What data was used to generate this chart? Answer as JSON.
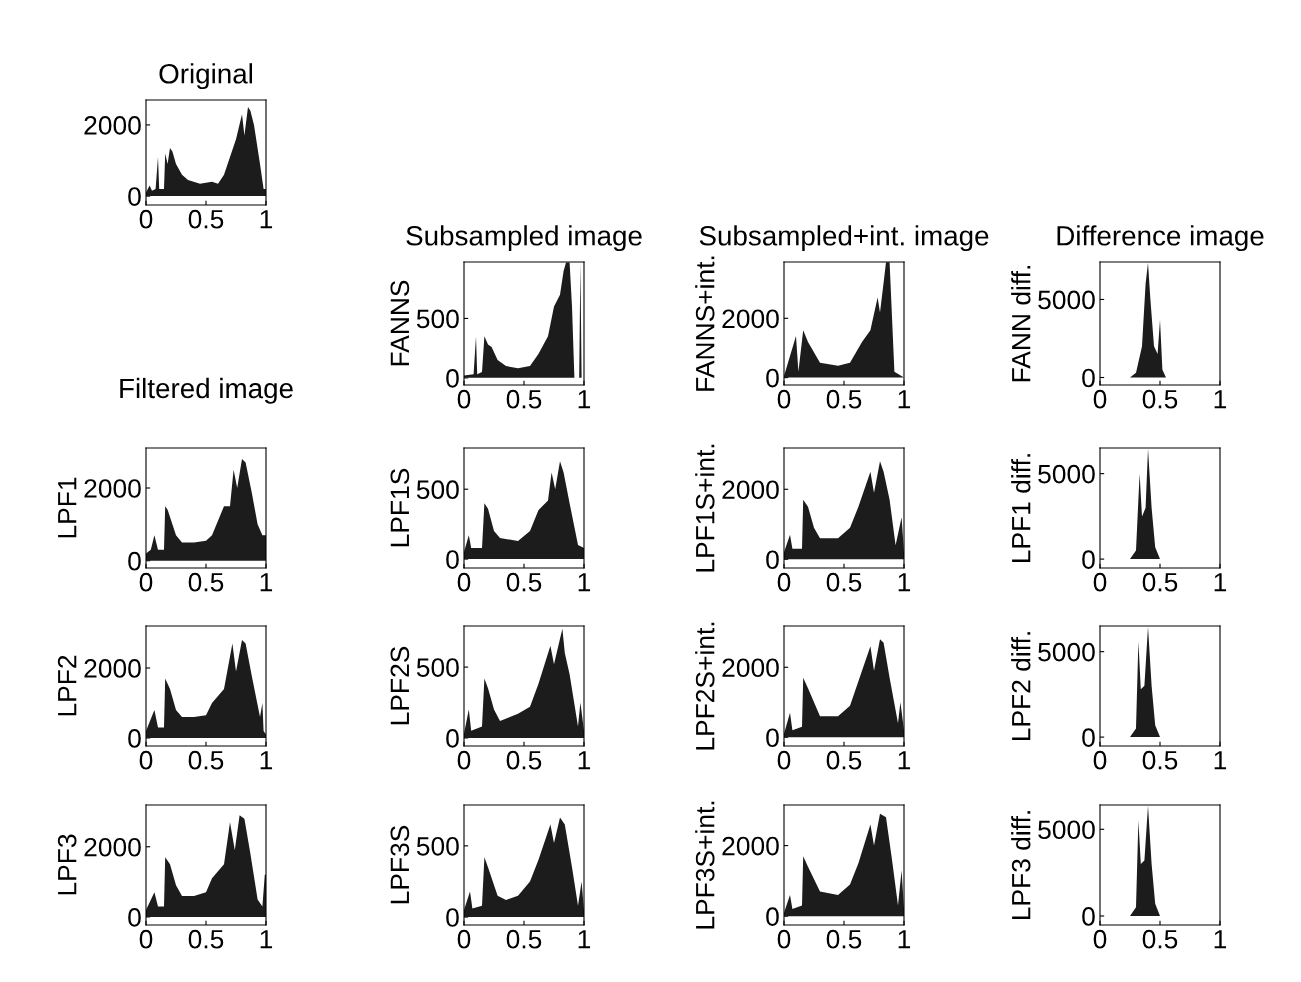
{
  "chart_data": [
    {
      "type": "area",
      "title": "Original",
      "color": "#1c1c1c",
      "xlim": [
        0,
        1
      ],
      "ylim": [
        -250,
        2700
      ],
      "xticks": [
        0,
        0.5,
        1
      ],
      "yticks": [
        0,
        2000
      ],
      "x": [
        0,
        0.03,
        0.05,
        0.08,
        0.1,
        0.11,
        0.15,
        0.16,
        0.18,
        0.2,
        0.22,
        0.25,
        0.3,
        0.35,
        0.45,
        0.55,
        0.6,
        0.65,
        0.7,
        0.75,
        0.8,
        0.82,
        0.85,
        0.87,
        0.9,
        0.95,
        0.98,
        1
      ],
      "values": [
        100,
        300,
        150,
        200,
        1100,
        200,
        200,
        1200,
        900,
        1350,
        1250,
        900,
        600,
        450,
        350,
        400,
        350,
        600,
        1100,
        1600,
        2300,
        1700,
        2500,
        2400,
        2000,
        900,
        200,
        200
      ]
    },
    {
      "type": "area",
      "title": "Subsampled image",
      "ylabel": "FANNS",
      "color": "#1c1c1c",
      "xlim": [
        0,
        1
      ],
      "ylim": [
        -60,
        975
      ],
      "xticks": [
        0,
        0.5,
        1
      ],
      "yticks": [
        0,
        500
      ],
      "x": [
        0,
        0.08,
        0.1,
        0.11,
        0.15,
        0.17,
        0.2,
        0.23,
        0.28,
        0.35,
        0.45,
        0.55,
        0.62,
        0.7,
        0.75,
        0.8,
        0.83,
        0.85,
        0.88,
        0.9,
        0.92,
        0.96,
        0.97,
        0.98,
        1
      ],
      "values": [
        20,
        30,
        350,
        30,
        50,
        350,
        280,
        260,
        150,
        100,
        80,
        100,
        200,
        350,
        600,
        700,
        900,
        970,
        970,
        600,
        0,
        0,
        970,
        0,
        0
      ]
    },
    {
      "type": "area",
      "title": "Subsampled+int. image",
      "ylabel": "FANNS+int.",
      "color": "#1c1c1c",
      "xlim": [
        0,
        1
      ],
      "ylim": [
        -250,
        3900
      ],
      "xticks": [
        0,
        0.5,
        1
      ],
      "yticks": [
        0,
        2000
      ],
      "x": [
        0,
        0.1,
        0.12,
        0.16,
        0.2,
        0.3,
        0.45,
        0.55,
        0.65,
        0.72,
        0.78,
        0.8,
        0.83,
        0.85,
        0.88,
        0.92,
        1
      ],
      "values": [
        50,
        1400,
        200,
        1600,
        1200,
        500,
        400,
        500,
        1200,
        1600,
        2700,
        2200,
        3200,
        3890,
        3890,
        200,
        0
      ]
    },
    {
      "type": "area",
      "title": "Difference image",
      "ylabel": "FANN diff.",
      "color": "#1c1c1c",
      "xlim": [
        0,
        1
      ],
      "ylim": [
        -480,
        7400
      ],
      "xticks": [
        0,
        0.5,
        1
      ],
      "yticks": [
        0,
        5000
      ],
      "x": [
        0,
        0.25,
        0.3,
        0.35,
        0.38,
        0.4,
        0.42,
        0.45,
        0.48,
        0.5,
        0.52,
        0.55,
        1
      ],
      "values": [
        0,
        0,
        300,
        2000,
        6000,
        7350,
        5000,
        2000,
        1500,
        3700,
        500,
        0,
        0
      ]
    },
    {
      "type": "area",
      "title": "Filtered image",
      "ylabel": "LPF1",
      "color": "#1c1c1c",
      "xlim": [
        0,
        1
      ],
      "ylim": [
        -200,
        3100
      ],
      "xticks": [
        0,
        0.5,
        1
      ],
      "yticks": [
        0,
        2000
      ],
      "x": [
        0,
        0.04,
        0.07,
        0.1,
        0.15,
        0.16,
        0.18,
        0.2,
        0.25,
        0.3,
        0.4,
        0.5,
        0.55,
        0.6,
        0.65,
        0.7,
        0.73,
        0.76,
        0.8,
        0.83,
        0.88,
        0.93,
        0.97,
        1
      ],
      "values": [
        200,
        300,
        700,
        300,
        300,
        1500,
        1400,
        1200,
        700,
        500,
        500,
        550,
        700,
        1100,
        1500,
        1500,
        2500,
        2000,
        2800,
        2700,
        1900,
        1000,
        700,
        700
      ]
    },
    {
      "type": "area",
      "ylabel": "LPF1S",
      "color": "#1c1c1c",
      "xlim": [
        0,
        1
      ],
      "ylim": [
        -64,
        795
      ],
      "xticks": [
        0,
        0.5,
        1
      ],
      "yticks": [
        0,
        500
      ],
      "x": [
        0,
        0.04,
        0.06,
        0.15,
        0.17,
        0.2,
        0.25,
        0.3,
        0.45,
        0.55,
        0.62,
        0.7,
        0.73,
        0.76,
        0.8,
        0.83,
        0.88,
        0.95,
        1
      ],
      "values": [
        50,
        170,
        80,
        80,
        400,
        360,
        200,
        150,
        130,
        200,
        350,
        420,
        620,
        500,
        700,
        620,
        400,
        100,
        80
      ]
    },
    {
      "type": "area",
      "ylabel": "LPF1S+int.",
      "color": "#1c1c1c",
      "xlim": [
        0,
        1
      ],
      "ylim": [
        -250,
        3180
      ],
      "xticks": [
        0,
        0.5,
        1
      ],
      "yticks": [
        0,
        2000
      ],
      "x": [
        0,
        0.05,
        0.07,
        0.15,
        0.16,
        0.2,
        0.25,
        0.3,
        0.45,
        0.55,
        0.62,
        0.72,
        0.75,
        0.8,
        0.83,
        0.88,
        0.93,
        0.98,
        1
      ],
      "values": [
        200,
        700,
        300,
        300,
        1700,
        1500,
        900,
        600,
        600,
        900,
        1500,
        2500,
        1900,
        2800,
        2500,
        1700,
        400,
        1200,
        200
      ]
    },
    {
      "type": "area",
      "ylabel": "LPF1 diff.",
      "color": "#1c1c1c",
      "xlim": [
        0,
        1
      ],
      "ylim": [
        -520,
        6500
      ],
      "xticks": [
        0,
        0.5,
        1
      ],
      "yticks": [
        0,
        5000
      ],
      "x": [
        0,
        0.25,
        0.3,
        0.33,
        0.35,
        0.38,
        0.4,
        0.43,
        0.46,
        0.5,
        1
      ],
      "values": [
        0,
        0,
        500,
        5000,
        2500,
        3000,
        6450,
        3000,
        700,
        0,
        0
      ]
    },
    {
      "type": "area",
      "ylabel": "LPF2",
      "color": "#1c1c1c",
      "xlim": [
        0,
        1
      ],
      "ylim": [
        -230,
        3200
      ],
      "xticks": [
        0,
        0.5,
        1
      ],
      "yticks": [
        0,
        2000
      ],
      "x": [
        0,
        0.07,
        0.1,
        0.15,
        0.16,
        0.2,
        0.25,
        0.3,
        0.4,
        0.5,
        0.55,
        0.65,
        0.72,
        0.75,
        0.8,
        0.83,
        0.88,
        0.95,
        0.97,
        0.98,
        1
      ],
      "values": [
        200,
        800,
        300,
        300,
        1700,
        1400,
        800,
        600,
        600,
        650,
        1000,
        1400,
        2700,
        1900,
        2800,
        2700,
        1800,
        600,
        1000,
        200,
        100
      ]
    },
    {
      "type": "area",
      "ylabel": "LPF2S",
      "color": "#1c1c1c",
      "xlim": [
        0,
        1
      ],
      "ylim": [
        -57,
        790
      ],
      "xticks": [
        0,
        0.5,
        1
      ],
      "yticks": [
        0,
        500
      ],
      "x": [
        0,
        0.04,
        0.06,
        0.15,
        0.17,
        0.2,
        0.25,
        0.3,
        0.45,
        0.55,
        0.62,
        0.72,
        0.75,
        0.8,
        0.82,
        0.84,
        0.88,
        0.95,
        0.97,
        1
      ],
      "values": [
        30,
        200,
        50,
        80,
        420,
        350,
        200,
        120,
        170,
        220,
        380,
        650,
        520,
        700,
        770,
        600,
        450,
        80,
        250,
        50
      ]
    },
    {
      "type": "area",
      "ylabel": "LPF2S+int.",
      "color": "#1c1c1c",
      "xlim": [
        0,
        1
      ],
      "ylim": [
        -250,
        3180
      ],
      "xticks": [
        0,
        0.5,
        1
      ],
      "yticks": [
        0,
        2000
      ],
      "x": [
        0,
        0.05,
        0.07,
        0.15,
        0.16,
        0.2,
        0.3,
        0.45,
        0.55,
        0.62,
        0.72,
        0.75,
        0.8,
        0.83,
        0.88,
        0.95,
        0.97,
        1
      ],
      "values": [
        100,
        700,
        200,
        300,
        1700,
        1400,
        600,
        600,
        900,
        1600,
        2600,
        1900,
        2800,
        2700,
        1700,
        400,
        1000,
        200
      ]
    },
    {
      "type": "area",
      "ylabel": "LPF2 diff.",
      "color": "#1c1c1c",
      "xlim": [
        0,
        1
      ],
      "ylim": [
        -520,
        6500
      ],
      "xticks": [
        0,
        0.5,
        1
      ],
      "yticks": [
        0,
        5000
      ],
      "x": [
        0,
        0.25,
        0.3,
        0.32,
        0.34,
        0.37,
        0.4,
        0.43,
        0.46,
        0.5,
        1
      ],
      "values": [
        0,
        0,
        500,
        5600,
        2800,
        3000,
        6450,
        3000,
        700,
        0,
        0
      ]
    },
    {
      "type": "area",
      "ylabel": "LPF3",
      "color": "#1c1c1c",
      "xlim": [
        0,
        1
      ],
      "ylim": [
        -230,
        3190
      ],
      "xticks": [
        0,
        0.5,
        1
      ],
      "yticks": [
        0,
        2000
      ],
      "x": [
        0,
        0.07,
        0.1,
        0.15,
        0.16,
        0.2,
        0.25,
        0.3,
        0.4,
        0.5,
        0.55,
        0.65,
        0.7,
        0.74,
        0.78,
        0.82,
        0.87,
        0.93,
        0.97,
        0.99,
        1
      ],
      "values": [
        200,
        700,
        300,
        300,
        1700,
        1500,
        900,
        600,
        600,
        700,
        1100,
        1500,
        2700,
        1900,
        2900,
        2800,
        1800,
        500,
        300,
        1200,
        1200
      ]
    },
    {
      "type": "area",
      "ylabel": "LPF3S",
      "color": "#1c1c1c",
      "xlim": [
        0,
        1
      ],
      "ylim": [
        -56,
        787
      ],
      "xticks": [
        0,
        0.5,
        1
      ],
      "yticks": [
        0,
        500
      ],
      "x": [
        0,
        0.05,
        0.07,
        0.15,
        0.17,
        0.2,
        0.28,
        0.35,
        0.45,
        0.55,
        0.62,
        0.72,
        0.75,
        0.8,
        0.84,
        0.9,
        0.95,
        0.98,
        1
      ],
      "values": [
        50,
        180,
        60,
        80,
        420,
        350,
        150,
        120,
        150,
        250,
        400,
        650,
        520,
        700,
        650,
        350,
        80,
        250,
        50
      ]
    },
    {
      "type": "area",
      "ylabel": "LPF3S+int.",
      "color": "#1c1c1c",
      "xlim": [
        0,
        1
      ],
      "ylim": [
        -250,
        3150
      ],
      "xticks": [
        0,
        0.5,
        1
      ],
      "yticks": [
        0,
        2000
      ],
      "x": [
        0,
        0.05,
        0.07,
        0.15,
        0.16,
        0.2,
        0.3,
        0.45,
        0.55,
        0.62,
        0.72,
        0.75,
        0.8,
        0.85,
        0.9,
        0.95,
        0.98,
        1
      ],
      "values": [
        100,
        600,
        200,
        300,
        1700,
        1400,
        700,
        600,
        900,
        1500,
        2600,
        2000,
        2900,
        2800,
        1600,
        300,
        1300,
        200
      ]
    },
    {
      "type": "area",
      "ylabel": "LPF3 diff.",
      "color": "#1c1c1c",
      "xlim": [
        0,
        1
      ],
      "ylim": [
        -520,
        6400
      ],
      "xticks": [
        0,
        0.5,
        1
      ],
      "yticks": [
        0,
        5000
      ],
      "x": [
        0,
        0.25,
        0.3,
        0.32,
        0.34,
        0.37,
        0.4,
        0.43,
        0.46,
        0.5,
        1
      ],
      "values": [
        0,
        0,
        500,
        5500,
        3000,
        3200,
        6350,
        3000,
        700,
        0,
        0
      ]
    }
  ]
}
